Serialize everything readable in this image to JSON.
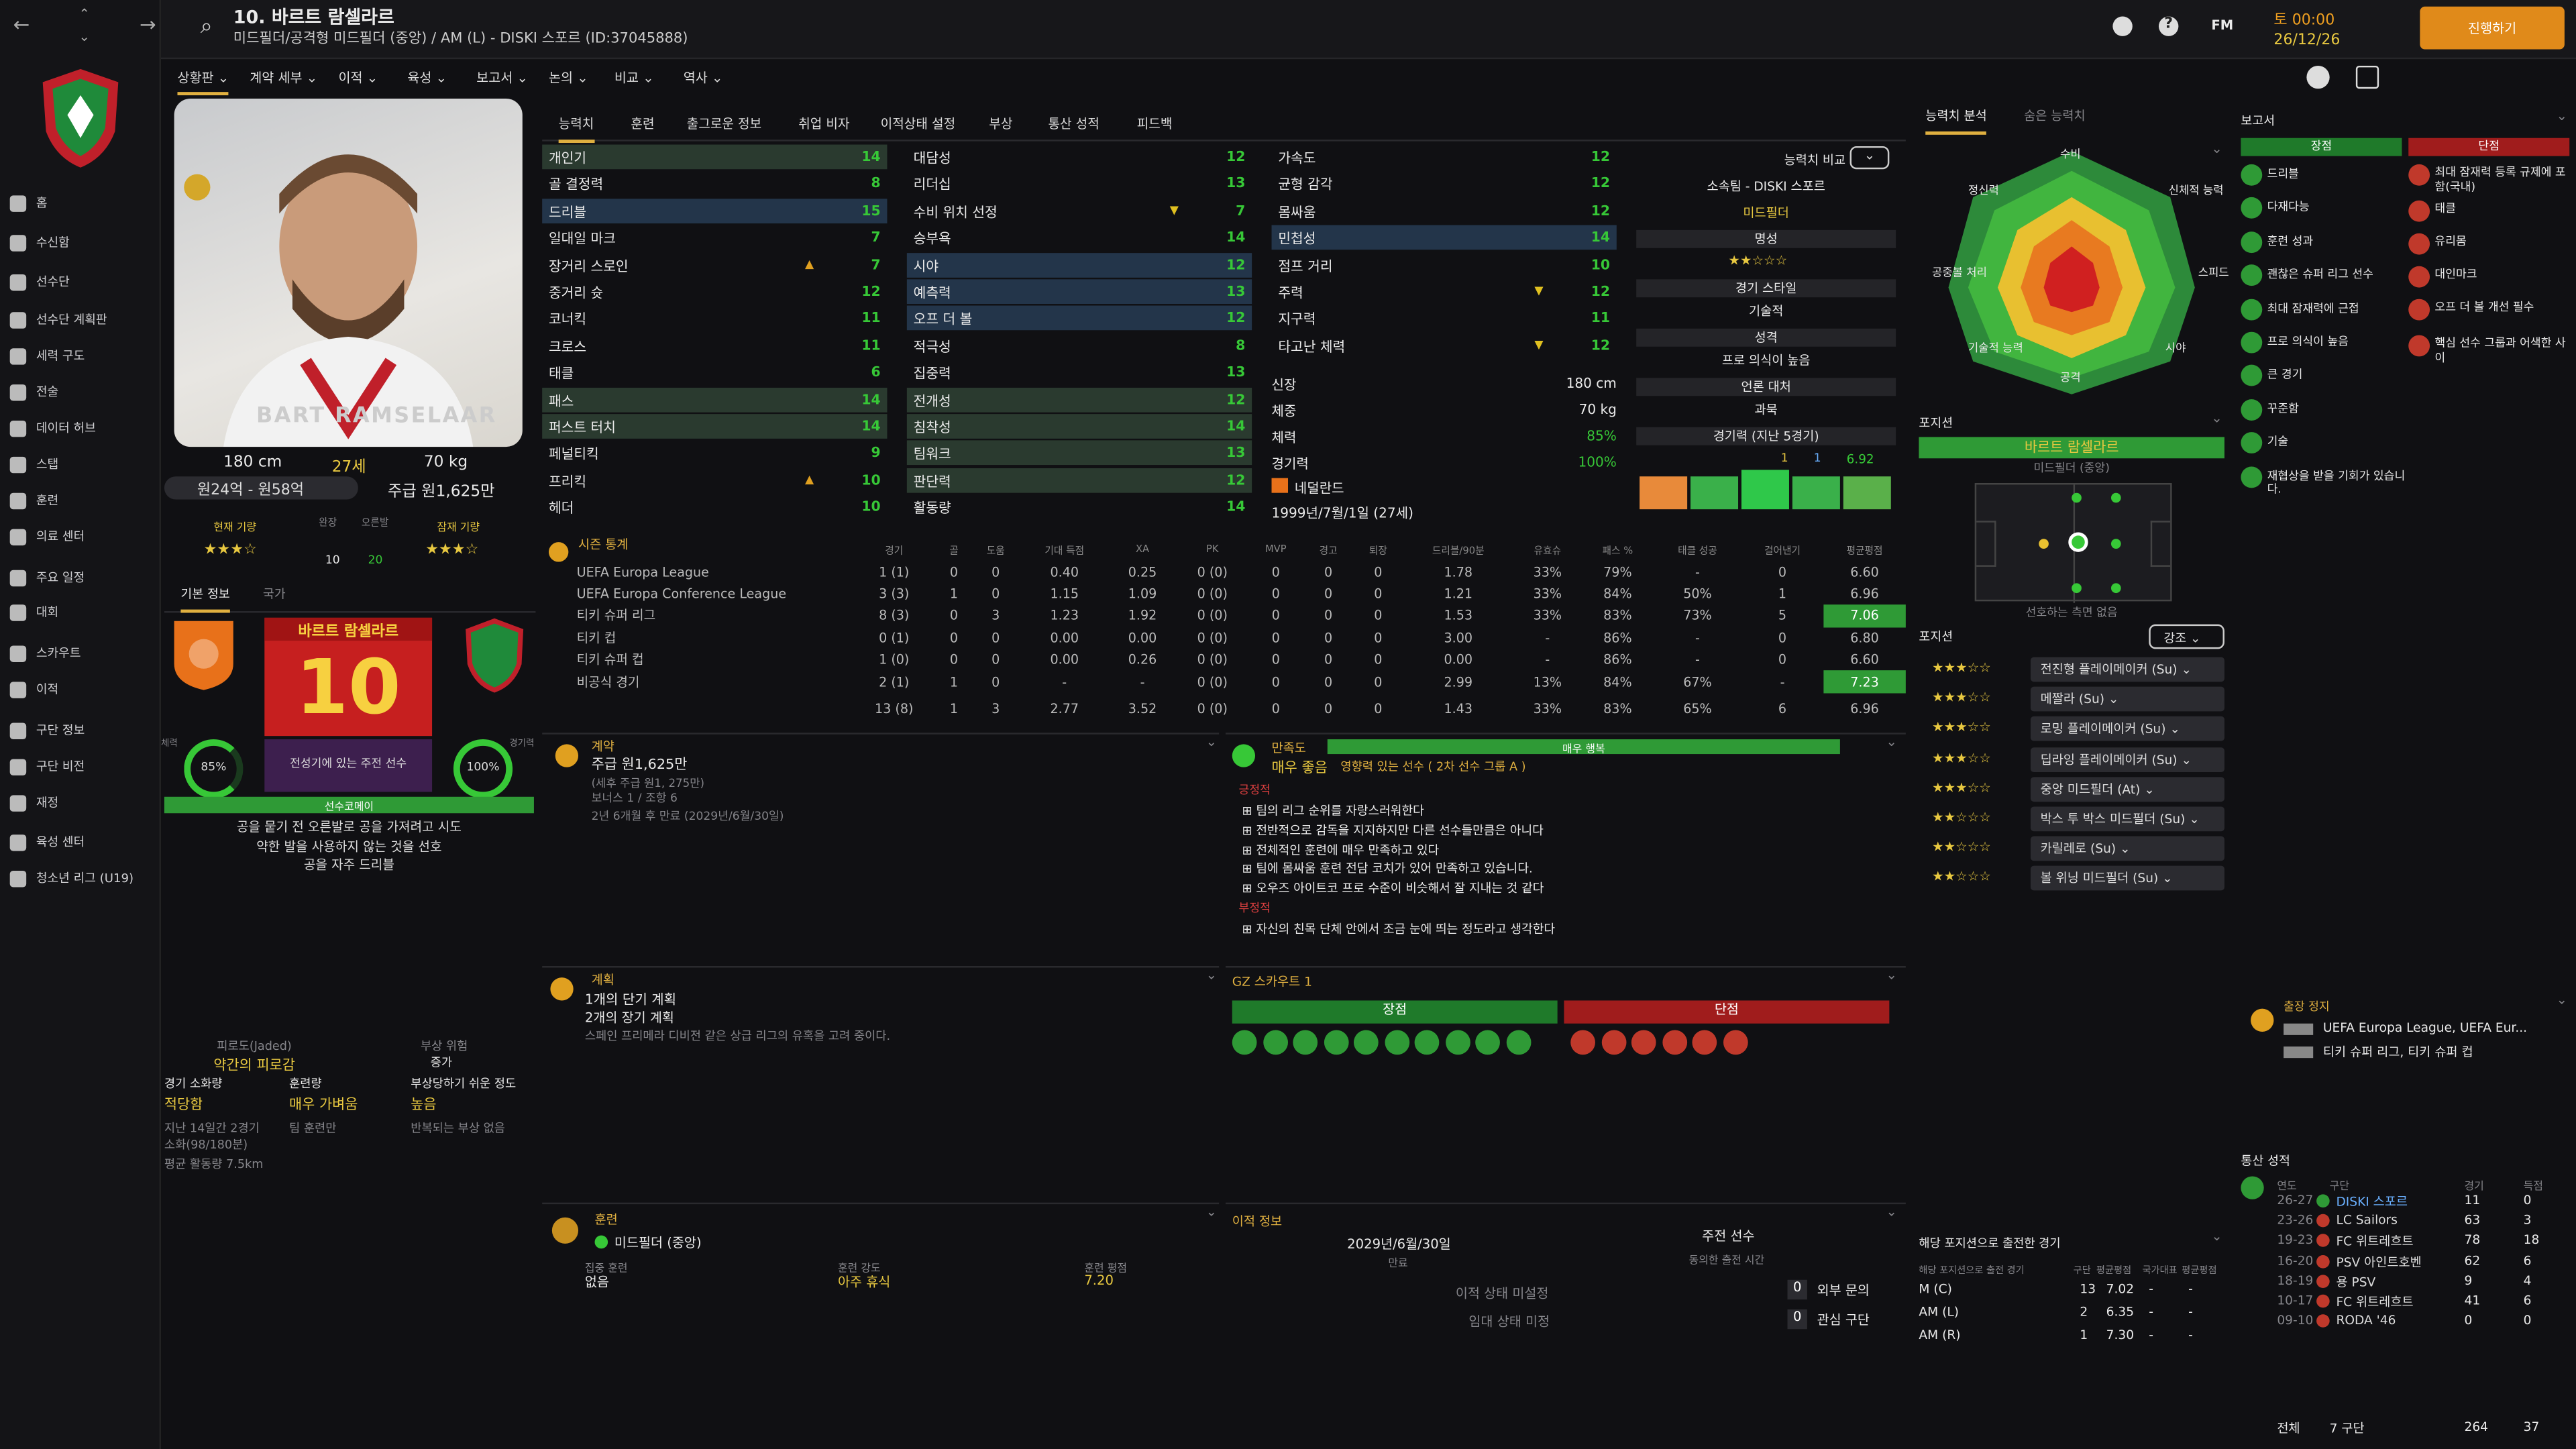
{
  "header": {
    "name": "10. 바르트 람셀라르",
    "sub": "미드필더/공격형 미드필더 (중앙) / AM (L) - DISKI 스포르 (ID:37045888)",
    "date": "토 00:00",
    "date2": "26/12/26",
    "continue": "진행하기",
    "fm": "FM"
  },
  "nav": [
    "홈",
    "수신함",
    "선수단",
    "선수단 계획판",
    "세력 구도",
    "전술",
    "데이터 허브",
    "스탭",
    "훈련",
    "의료 센터",
    "주요 일정",
    "대회",
    "스카우트",
    "이적",
    "구단 정보",
    "구단 비전",
    "재정",
    "육성 센터",
    "청소년 리그 (U19)"
  ],
  "tabs_top": [
    "상황판",
    "계약 세부",
    "이적",
    "육성",
    "보고서",
    "논의",
    "비교",
    "역사"
  ],
  "tabs_sub": [
    "능력치",
    "훈련",
    "출그로운 정보",
    "취업 비자",
    "이적상태 설정",
    "부상",
    "통산 성적",
    "피드백"
  ],
  "profile": {
    "photo_name": "BART RAMSELAAR",
    "height": "180 cm",
    "age": "27세",
    "weight": "70 kg",
    "value": "원24억 - 원58억",
    "wage": "주급 원1,625만",
    "cur_ability": "현재 기량",
    "pot_ability": "잠재 기량",
    "apps_label": "완장",
    "apps": "10",
    "goals_label": "오른발",
    "goals": "20",
    "tab1": "기본 정보",
    "tab2": "국가",
    "card_name": "바르트 람셀라르",
    "number": "10",
    "fit_label": "체력",
    "fit": "85%",
    "sharp_label": "경기력",
    "sharp": "100%",
    "role": "전성기에 있는 주전 선수",
    "injury_label": "선수코메이",
    "traits": [
      "공을 뭍기 전 오른발로 공을 가져려고 시도",
      "약한 발을 사용하지 않는 것을 선호",
      "공을 자주 드리블"
    ]
  },
  "fatigue": {
    "t1": "피로도(Jaded)",
    "v1": "약간의 피로감",
    "t2": "부상 위험",
    "v2": "증가",
    "t3": "경기 소화량",
    "v3": "적당함",
    "t4": "훈련량",
    "v4": "매우 가벼움",
    "t5": "부상당하기 쉬운 정도",
    "v5": "높음",
    "n1": "지난 14일간 2경기",
    "n2": "소화(98/180분)",
    "n3": "평균 활동량 7.5km",
    "n4": "팀 훈련만",
    "n5": "반복되는 부상 없음"
  },
  "attr_col1": [
    [
      "개인기",
      "14"
    ],
    [
      "골 결정력",
      "8"
    ],
    [
      "드리블",
      "15"
    ],
    [
      "일대일 마크",
      "7"
    ],
    [
      "장거리 스로인",
      "7"
    ],
    [
      "중거리 슛",
      "12"
    ],
    [
      "코너킥",
      "11"
    ],
    [
      "크로스",
      "11"
    ],
    [
      "태클",
      "6"
    ],
    [
      "패스",
      "14"
    ],
    [
      "퍼스트 터치",
      "14"
    ],
    [
      "페널티킥",
      "9"
    ],
    [
      "프리킥",
      "10"
    ],
    [
      "헤더",
      "10"
    ]
  ],
  "attr_col2": [
    [
      "대담성",
      "12"
    ],
    [
      "리더십",
      "13"
    ],
    [
      "수비 위치 선정",
      "7"
    ],
    [
      "승부욕",
      "14"
    ],
    [
      "시야",
      "12"
    ],
    [
      "예측력",
      "13"
    ],
    [
      "오프 더 볼",
      "12"
    ],
    [
      "적극성",
      "8"
    ],
    [
      "집중력",
      "13"
    ],
    [
      "전개성",
      "12"
    ],
    [
      "침착성",
      "14"
    ],
    [
      "팀워크",
      "13"
    ],
    [
      "판단력",
      "12"
    ],
    [
      "활동량",
      "14"
    ]
  ],
  "attr_col3": [
    [
      "가속도",
      "12"
    ],
    [
      "균형 감각",
      "12"
    ],
    [
      "몸싸움",
      "12"
    ],
    [
      "민첩성",
      "14"
    ],
    [
      "점프 거리",
      "10"
    ],
    [
      "주력",
      "12"
    ],
    [
      "지구력",
      "11"
    ],
    [
      "타고난 체력",
      "12"
    ]
  ],
  "physical": {
    "h_label": "신장",
    "h": "180 cm",
    "w_label": "체중",
    "w": "70 kg",
    "c_label": "체력",
    "c": "85%",
    "s_label": "경기력",
    "s": "100%",
    "nation": "네덜란드",
    "dob": "1999년/7월/1일 (27세)"
  },
  "compare": {
    "label": "능력치 비교",
    "club": "소속팀 - DISKI 스포르",
    "pos": "미드필더",
    "rep": "명성",
    "style": "경기 스타일",
    "style_v": "기술적",
    "pers": "성격",
    "pers_v": "프로 의식이 높음",
    "media": "언론 대처",
    "media_v": "과묵",
    "form": "경기력 (지난 5경기)",
    "form_v": "6.92",
    "g": "1",
    "a": "1"
  },
  "season": {
    "label": "시즌 통계",
    "cols": [
      "경기",
      "골",
      "도움",
      "기대 득점",
      "XA",
      "PK",
      "MVP",
      "경고",
      "퇴장",
      "드리블/90분",
      "유효슈",
      "패스 %",
      "태클 성공",
      "걸어낸기",
      "평균평점"
    ],
    "rows": [
      [
        "UEFA Europa League",
        "1 (1)",
        "0",
        "0",
        "0.40",
        "0.25",
        "0 (0)",
        "0",
        "0",
        "0",
        "1.78",
        "33%",
        "79%",
        "-",
        "0",
        "6.60"
      ],
      [
        "UEFA Europa Conference League",
        "3 (3)",
        "1",
        "0",
        "1.15",
        "1.09",
        "0 (0)",
        "0",
        "0",
        "0",
        "1.21",
        "33%",
        "84%",
        "50%",
        "1",
        "6.96"
      ],
      [
        "티키 슈퍼 리그",
        "8 (3)",
        "0",
        "3",
        "1.23",
        "1.92",
        "0 (0)",
        "0",
        "0",
        "0",
        "1.53",
        "33%",
        "83%",
        "73%",
        "5",
        "7.06"
      ],
      [
        "티키 컵",
        "0 (1)",
        "0",
        "0",
        "0.00",
        "0.00",
        "0 (0)",
        "0",
        "0",
        "0",
        "3.00",
        "-",
        "86%",
        "-",
        "0",
        "6.80"
      ],
      [
        "티키 슈퍼 컵",
        "1 (0)",
        "0",
        "0",
        "0.00",
        "0.26",
        "0 (0)",
        "0",
        "0",
        "0",
        "0.00",
        "-",
        "86%",
        "-",
        "0",
        "6.60"
      ],
      [
        "비공식 경기",
        "2 (1)",
        "1",
        "0",
        "-",
        "-",
        "0 (0)",
        "0",
        "0",
        "0",
        "2.99",
        "13%",
        "84%",
        "67%",
        "-",
        "7.23"
      ]
    ],
    "total": [
      "13 (8)",
      "1",
      "3",
      "2.77",
      "3.52",
      "0 (0)",
      "0",
      "0",
      "0",
      "1.43",
      "33%",
      "83%",
      "65%",
      "6",
      "6.96"
    ]
  },
  "contract": {
    "label": "계약",
    "wage": "주급 원1,625만",
    "wage_sub": "(세후 주급 원1, 275만)",
    "bonus": "보너스 1 / 조항 6",
    "end": "2년 6개월 후 만료 (2029년/6월/30일)"
  },
  "happy": {
    "label": "만족도",
    "level": "매우 행복",
    "v": "매우 좋음",
    "note": "영향력 있는 선수 ( 2차 선수 그룹 A )",
    "pos_label": "긍정적",
    "pos": [
      "팀의 리그 순위를 자랑스러워한다",
      "전반적으로 감독을 지지하지만 다른 선수들만큼은 아니다",
      "전체적인 훈련에 매우 만족하고 있다",
      "팀에 몸싸움 훈련 전담 코치가 있어 만족하고 있습니다.",
      "오우즈 아이트코 프로 수준이 비슷해서 잘 지내는 것 같다"
    ],
    "neg_label": "부정적",
    "neg": [
      "자신의 친목 단체 안에서 조금 눈에 띄는 정도라고 생각한다"
    ]
  },
  "plans": {
    "label": "계획",
    "short": "1개의 단기 계획",
    "long": "2개의 장기 계획",
    "note": "스페인 프리메라 디비전 같은 상급 리그의 유혹을 고려 중이다."
  },
  "gz": {
    "label": "GZ 스카우트 1",
    "pro": "장점",
    "con": "단점"
  },
  "training": {
    "label": "훈련",
    "pos": "미드필더 (중앙)",
    "focus_l": "집중 훈련",
    "focus": "없음",
    "int_l": "훈련 강도",
    "int": "아주 휴식",
    "rate_l": "훈련 평점",
    "rate": "7.20"
  },
  "transfer": {
    "label": "이적 정보",
    "date": "2029년/6월/30일",
    "date_l": "만료",
    "role": "주전 선수",
    "role_l": "동의한 출전 시간",
    "status": "이적 상태 미설정",
    "loan": "임대 상태 미정",
    "inq": "외부 문의",
    "inq_v": "0",
    "int": "관심 구단",
    "int_v": "0"
  },
  "analysis": {
    "tab1": "능력치 분석",
    "tab2": "숨은 능력치",
    "labels": [
      "수비",
      "신체적 능력",
      "스피드",
      "시야",
      "공격",
      "기술적 능력",
      "공중볼 처리",
      "정신력"
    ]
  },
  "position": {
    "label": "포지션",
    "name": "바르트 람셀라르",
    "sub": "미드필더 (중앙)",
    "note": "선호하는 측면 없음"
  },
  "roles": {
    "label": "포지션",
    "btn": "강조",
    "list": [
      [
        "전진형 플레이메이커 (Su)",
        3
      ],
      [
        "메짤라 (Su)",
        3
      ],
      [
        "로밍 플레이메이커 (Su)",
        3
      ],
      [
        "딥라잉 플레이메이커 (Su)",
        3
      ],
      [
        "중앙 미드필더 (At)",
        3
      ],
      [
        "박스 투 박스 미드필더 (Su)",
        2.5
      ],
      [
        "카릴레로 (Su)",
        2.5
      ],
      [
        "볼 위닝 미드필더 (Su)",
        2.5
      ]
    ]
  },
  "pos_apps": {
    "label": "해당 포지션으로 출전한 경기",
    "h1": "해당 포지션으로 출전 경기",
    "h2": "구단",
    "h3": "평균평점",
    "h4": "국가대표",
    "h5": "평균평점",
    "rows": [
      [
        "M (C)",
        "13",
        "7.02",
        "-",
        "-"
      ],
      [
        "AM (L)",
        "2",
        "6.35",
        "-",
        "-"
      ],
      [
        "AM (R)",
        "1",
        "7.30",
        "-",
        "-"
      ]
    ]
  },
  "report": {
    "label": "보고서",
    "pro": "장점",
    "con": "단점",
    "pros": [
      "드리블",
      "다재다능",
      "훈련 성과",
      "괜찮은 슈퍼 리그 선수",
      "최대 잠재력에 근접",
      "프로 의식이 높음",
      "큰 경기",
      "꾸준함",
      "기술",
      "재협상을 받을 기회가 있습니다."
    ],
    "cons": [
      "최대 잠재력 등록 규제에 포함(국내)",
      "태클",
      "유리몸",
      "대인마크",
      "오프 더 볼 개선 필수",
      "핵심 선수 그룹과 어색한 사이"
    ]
  },
  "suspension": {
    "label": "출장 정지",
    "l1": "UEFA Europa League, UEFA Eur...",
    "l2": "티키 슈퍼 리그, 티키 슈퍼 컵"
  },
  "career": {
    "label": "통산 성적",
    "h": [
      "연도",
      "구단",
      "경기",
      "득점"
    ],
    "rows": [
      [
        "26-27",
        "DISKI 스포르",
        "11",
        "0"
      ],
      [
        "23-26",
        "LC Sailors",
        "63",
        "3"
      ],
      [
        "19-23",
        "FC 위트레흐트",
        "78",
        "18"
      ],
      [
        "16-20",
        "PSV 아인트호벤",
        "62",
        "6"
      ],
      [
        "18-19",
        "용 PSV",
        "9",
        "4"
      ],
      [
        "10-17",
        "FC 위트레흐트",
        "41",
        "6"
      ],
      [
        "09-10",
        "RODA '46",
        "0",
        "0"
      ]
    ],
    "total_l": "전체",
    "total_c": "7 구단",
    "total_a": "264",
    "total_g": "37"
  }
}
